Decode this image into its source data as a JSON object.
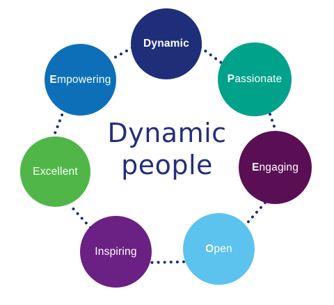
{
  "center_label": {
    "line1": "Dynamic",
    "line2": "people"
  },
  "nodes": [
    {
      "id": "dynamic",
      "initial": "Dynamic",
      "rest": "",
      "color": "#1f2e79"
    },
    {
      "id": "passionate",
      "initial": "P",
      "rest": "assionate",
      "color": "#00a28a"
    },
    {
      "id": "engaging",
      "initial": "E",
      "rest": "ngaging",
      "color": "#5a0f55"
    },
    {
      "id": "open",
      "initial": "O",
      "rest": "pen",
      "color": "#5cc3ee"
    },
    {
      "id": "inspiring",
      "initial": "Ins",
      "rest": "piring",
      "color": "#6a2183"
    },
    {
      "id": "excellent",
      "initial": "E",
      "rest": "xcellent",
      "color": "#50b648"
    },
    {
      "id": "empowering",
      "initial": "E",
      "rest": "mpowering",
      "color": "#0d6fb8"
    }
  ],
  "connector_color": "#1f2e79"
}
